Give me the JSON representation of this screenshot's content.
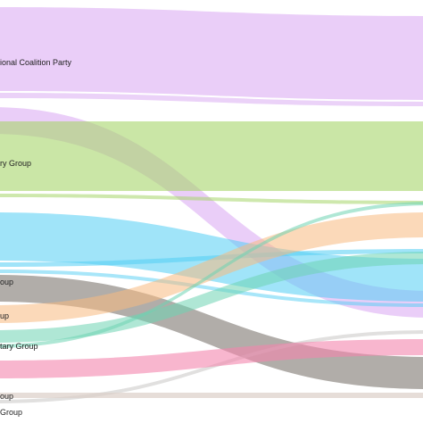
{
  "chart_data": {
    "type": "sankey",
    "labels": [
      {
        "id": "coalition",
        "text": "ional Coalition Party"
      },
      {
        "id": "green",
        "text": "ry Group"
      },
      {
        "id": "gray",
        "text": "oup"
      },
      {
        "id": "orange",
        "text": "up"
      },
      {
        "id": "teal",
        "text": "tary Group"
      },
      {
        "id": "pink",
        "text": "oup"
      },
      {
        "id": "beige",
        "text": "Group"
      }
    ],
    "colors": {
      "purple": "#d8a6f2",
      "green": "#a6d66a",
      "blue": "#52cdf4",
      "gray": "#7d7670",
      "orange": "#f8ba80",
      "teal": "#6ed3b2",
      "pink": "#f386ae",
      "beige": "#dccfc8",
      "lightgray": "#c9c6c4"
    },
    "flows": [
      {
        "id": "purple-main",
        "color": "purple"
      },
      {
        "id": "purple-thin",
        "color": "purple"
      },
      {
        "id": "purple-cross",
        "color": "purple"
      },
      {
        "id": "green-main",
        "color": "green"
      },
      {
        "id": "green-thin",
        "color": "green"
      },
      {
        "id": "blue-main",
        "color": "blue"
      },
      {
        "id": "blue-thin-1",
        "color": "blue"
      },
      {
        "id": "blue-thin-2",
        "color": "blue"
      },
      {
        "id": "gray-main",
        "color": "gray"
      },
      {
        "id": "gray-thin",
        "color": "lightgray"
      },
      {
        "id": "orange-main",
        "color": "orange"
      },
      {
        "id": "teal-main",
        "color": "teal"
      },
      {
        "id": "teal-thin",
        "color": "teal"
      },
      {
        "id": "pink-main",
        "color": "pink"
      },
      {
        "id": "beige-main",
        "color": "beige"
      }
    ]
  }
}
